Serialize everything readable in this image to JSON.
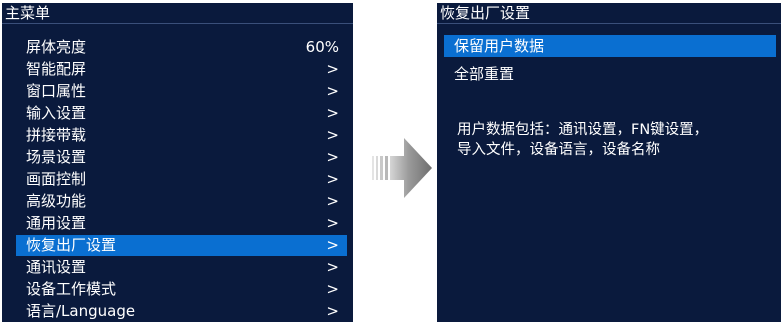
{
  "left_panel": {
    "title": "主菜单",
    "items": [
      {
        "label": "屏体亮度",
        "value": "60%"
      },
      {
        "label": "智能配屏",
        "value": ">"
      },
      {
        "label": "窗口属性",
        "value": ">"
      },
      {
        "label": "输入设置",
        "value": ">"
      },
      {
        "label": "拼接带载",
        "value": ">"
      },
      {
        "label": "场景设置",
        "value": ">"
      },
      {
        "label": "画面控制",
        "value": ">"
      },
      {
        "label": "高级功能",
        "value": ">"
      },
      {
        "label": "通用设置",
        "value": ">"
      },
      {
        "label": "恢复出厂设置",
        "value": ">"
      },
      {
        "label": "通讯设置",
        "value": ">"
      },
      {
        "label": "设备工作模式",
        "value": ">"
      },
      {
        "label": "语言/Language",
        "value": ">"
      }
    ],
    "selected_index": 9
  },
  "right_panel": {
    "title": "恢复出厂设置",
    "options": [
      {
        "label": "保留用户数据"
      },
      {
        "label": "全部重置"
      }
    ],
    "selected_index": 0,
    "info_lines": [
      "用户数据包括：通讯设置，FN键设置，",
      "导入文件，设备语言，设备名称"
    ]
  },
  "colors": {
    "panel_background": "#0a1a3d",
    "highlight": "#0a6fd1",
    "text": "#ffffff",
    "arrow": "#8a8a8a"
  },
  "icons": {
    "transition_arrow": "right-arrow-icon"
  }
}
